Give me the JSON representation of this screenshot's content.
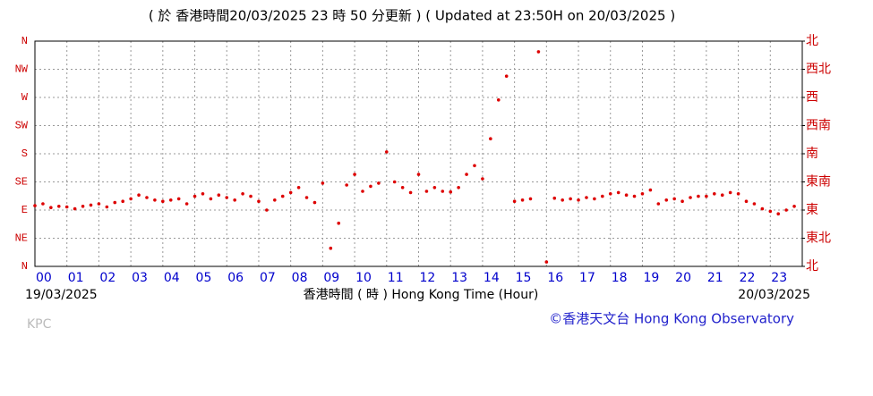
{
  "header": {
    "title": "( 於 香港時間20/03/2025 23 時 50 分更新 ) ( Updated at 23:50H on 20/03/2025 )"
  },
  "chart_data": {
    "type": "scatter",
    "color": "#dd0000",
    "grid": true,
    "xlabel": "香港時間 ( 時 ) Hong Kong Time (Hour)",
    "start_date": "19/03/2025",
    "end_date": "20/03/2025",
    "xlim": [
      0,
      24
    ],
    "xticks": [
      {
        "value": 0,
        "label": "00"
      },
      {
        "value": 1,
        "label": "01"
      },
      {
        "value": 2,
        "label": "02"
      },
      {
        "value": 3,
        "label": "03"
      },
      {
        "value": 4,
        "label": "04"
      },
      {
        "value": 5,
        "label": "05"
      },
      {
        "value": 6,
        "label": "06"
      },
      {
        "value": 7,
        "label": "07"
      },
      {
        "value": 8,
        "label": "08"
      },
      {
        "value": 9,
        "label": "09"
      },
      {
        "value": 10,
        "label": "10"
      },
      {
        "value": 11,
        "label": "11"
      },
      {
        "value": 12,
        "label": "12"
      },
      {
        "value": 13,
        "label": "13"
      },
      {
        "value": 14,
        "label": "14"
      },
      {
        "value": 15,
        "label": "15"
      },
      {
        "value": 16,
        "label": "16"
      },
      {
        "value": 17,
        "label": "17"
      },
      {
        "value": 18,
        "label": "18"
      },
      {
        "value": 19,
        "label": "19"
      },
      {
        "value": 20,
        "label": "20"
      },
      {
        "value": 21,
        "label": "21"
      },
      {
        "value": 22,
        "label": "22"
      },
      {
        "value": 23,
        "label": "23"
      }
    ],
    "ylim": [
      0,
      360
    ],
    "yticks": [
      {
        "value": 0,
        "label": "N"
      },
      {
        "value": 45,
        "label": "NE"
      },
      {
        "value": 90,
        "label": "E"
      },
      {
        "value": 135,
        "label": "SE"
      },
      {
        "value": 180,
        "label": "S"
      },
      {
        "value": 225,
        "label": "SW"
      },
      {
        "value": 270,
        "label": "W"
      },
      {
        "value": 315,
        "label": "NW"
      },
      {
        "value": 360,
        "label": "N"
      }
    ],
    "y2lim": [
      0,
      360
    ],
    "y2ticks": [
      {
        "value": 0,
        "label": "北"
      },
      {
        "value": 45,
        "label": "東北"
      },
      {
        "value": 90,
        "label": "東"
      },
      {
        "value": 135,
        "label": "東南"
      },
      {
        "value": 180,
        "label": "南"
      },
      {
        "value": 225,
        "label": "西南"
      },
      {
        "value": 270,
        "label": "西"
      },
      {
        "value": 315,
        "label": "西北"
      },
      {
        "value": 360,
        "label": "北"
      }
    ],
    "x": [
      0,
      0.25,
      0.5,
      0.75,
      1,
      1.25,
      1.5,
      1.75,
      2,
      2.25,
      2.5,
      2.75,
      3,
      3.25,
      3.5,
      3.75,
      4,
      4.25,
      4.5,
      4.75,
      5,
      5.25,
      5.5,
      5.75,
      6,
      6.25,
      6.5,
      6.75,
      7,
      7.25,
      7.5,
      7.75,
      8,
      8.25,
      8.5,
      8.75,
      9,
      9.25,
      9.5,
      9.75,
      10,
      10.25,
      10.5,
      10.75,
      11,
      11.25,
      11.5,
      11.75,
      12,
      12.25,
      12.5,
      12.75,
      13,
      13.25,
      13.5,
      13.75,
      14,
      14.25,
      14.5,
      14.75,
      15,
      15.25,
      15.5,
      15.75,
      16,
      16.25,
      16.5,
      16.75,
      17,
      17.25,
      17.5,
      17.75,
      18,
      18.25,
      18.5,
      18.75,
      19,
      19.25,
      19.5,
      19.75,
      20,
      20.25,
      20.5,
      20.75,
      21,
      21.25,
      21.5,
      21.75,
      22,
      22.25,
      22.5,
      22.75,
      23,
      23.25,
      23.5,
      23.75
    ],
    "values": [
      97,
      100,
      94,
      96,
      95,
      92,
      96,
      98,
      100,
      95,
      102,
      104,
      108,
      114,
      110,
      106,
      104,
      106,
      108,
      100,
      112,
      116,
      108,
      114,
      110,
      106,
      116,
      112,
      104,
      90,
      106,
      112,
      118,
      126,
      110,
      102,
      133,
      29,
      69,
      130,
      147,
      120,
      128,
      133,
      183,
      135,
      126,
      118,
      147,
      120,
      126,
      120,
      119,
      126,
      147,
      161,
      140,
      204,
      266,
      304,
      104,
      106,
      108,
      343,
      7,
      109,
      106,
      108,
      106,
      110,
      108,
      112,
      116,
      118,
      114,
      112,
      116,
      122,
      100,
      106,
      108,
      104,
      110,
      112,
      112,
      116,
      114,
      118,
      116,
      104,
      100,
      92,
      88,
      84,
      90,
      96
    ]
  },
  "footer": {
    "station": "KPC",
    "credit": "©香港天文台 Hong Kong Observatory"
  }
}
